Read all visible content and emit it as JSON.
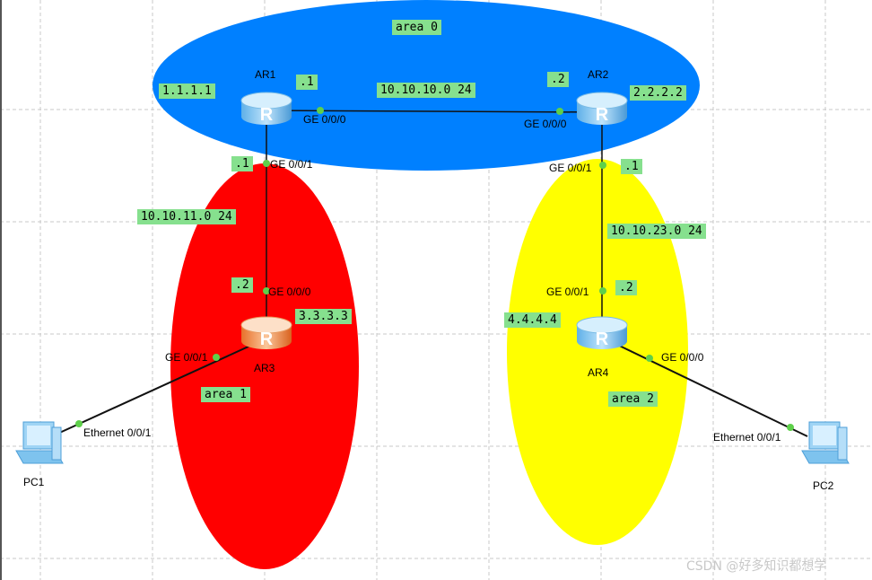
{
  "areas": [
    "area 0",
    "area 1",
    "area 2"
  ],
  "routers": [
    {
      "name": "AR1",
      "router_id": "1.1.1.1"
    },
    {
      "name": "AR2",
      "router_id": "2.2.2.2"
    },
    {
      "name": "AR3",
      "router_id": "3.3.3.3"
    },
    {
      "name": "AR4",
      "router_id": "4.4.4.4"
    }
  ],
  "pcs": [
    "PC1",
    "PC2"
  ],
  "links": [
    {
      "network": "10.10.10.0 24",
      "a": {
        "interface": "GE 0/0/0",
        "host": ".1"
      },
      "b": {
        "interface": "GE 0/0/0",
        "host": ".2"
      }
    },
    {
      "network": "10.10.11.0 24",
      "a": {
        "interface": "GE 0/0/1",
        "host": ".1"
      },
      "b": {
        "interface": "GE 0/0/0",
        "host": ".2"
      }
    },
    {
      "network": "10.10.23.0 24",
      "a": {
        "interface": "GE 0/0/1",
        "host": ".1"
      },
      "b": {
        "interface": "GE 0/0/1",
        "host": ".2"
      }
    },
    {
      "a": {
        "interface": "GE 0/0/1"
      },
      "b": {
        "interface": "Ethernet 0/0/1"
      }
    },
    {
      "a": {
        "interface": "GE 0/0/0"
      },
      "b": {
        "interface": "Ethernet 0/0/1"
      }
    }
  ],
  "watermark": "CSDN @好多知识都想学"
}
